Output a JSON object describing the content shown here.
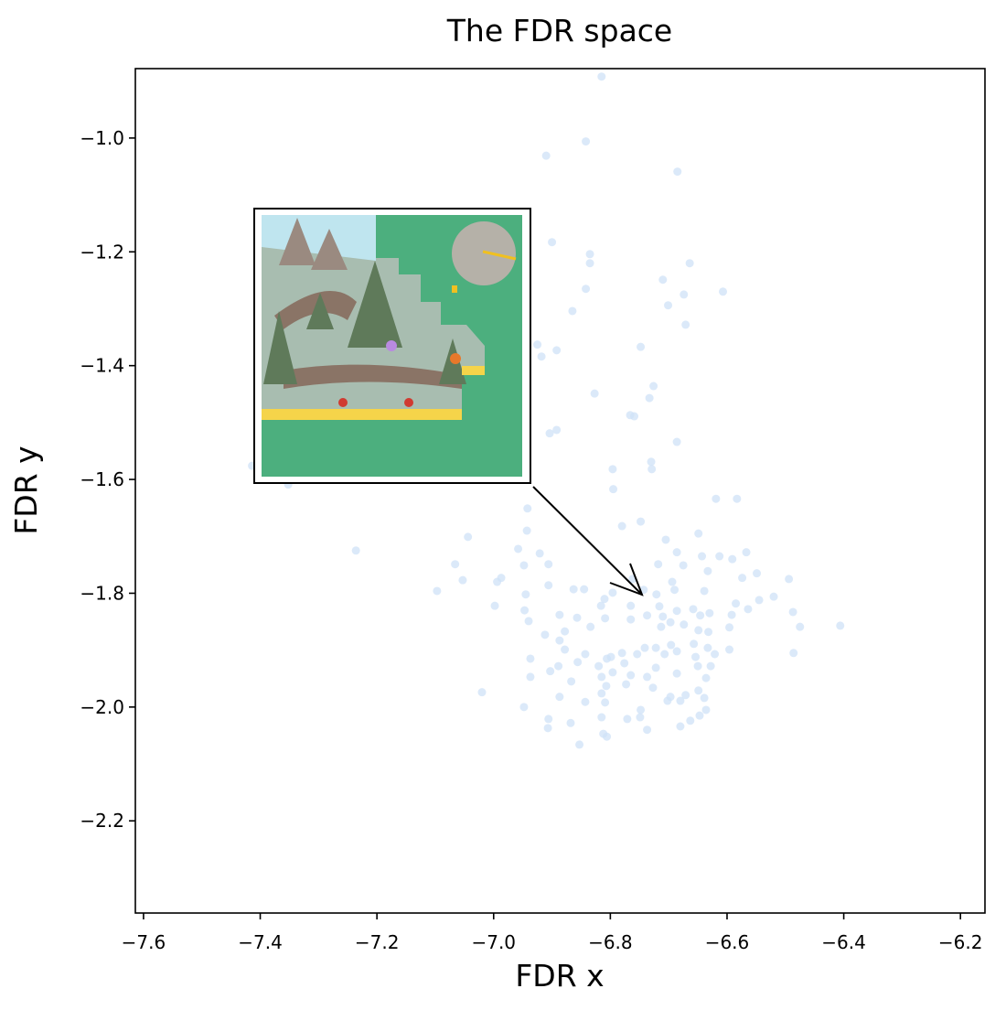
{
  "chart_data": {
    "type": "scatter",
    "title": "The FDR space",
    "x_label": "FDR x",
    "y_label": "FDR y",
    "color": "#cfe1f7",
    "xlim": [
      -7.614,
      -6.158
    ],
    "ylim": [
      -2.362,
      -0.878
    ],
    "xticks": [
      {
        "value": -7.6,
        "label": "−7.6"
      },
      {
        "value": -7.4,
        "label": "−7.4"
      },
      {
        "value": -7.2,
        "label": "−7.2"
      },
      {
        "value": -7.0,
        "label": "−7.0"
      },
      {
        "value": -6.8,
        "label": "−6.8"
      },
      {
        "value": -6.6,
        "label": "−6.6"
      },
      {
        "value": -6.4,
        "label": "−6.4"
      },
      {
        "value": -6.2,
        "label": "−6.2"
      }
    ],
    "yticks": [
      {
        "value": -1.0,
        "label": "−1.0"
      },
      {
        "value": -1.2,
        "label": "−1.2"
      },
      {
        "value": -1.4,
        "label": "−1.4"
      },
      {
        "value": -1.6,
        "label": "−1.6"
      },
      {
        "value": -1.8,
        "label": "−1.8"
      },
      {
        "value": -2.0,
        "label": "−2.0"
      },
      {
        "value": -2.2,
        "label": "−2.2"
      }
    ],
    "x": [
      -6.815,
      -6.842,
      -6.91,
      -6.685,
      -6.9,
      -6.835,
      -6.835,
      -6.664,
      -6.71,
      -6.607,
      -6.674,
      -6.701,
      -6.842,
      -6.865,
      -6.671,
      -6.925,
      -6.918,
      -6.892,
      -6.748,
      -6.726,
      -6.733,
      -6.827,
      -6.766,
      -6.759,
      -6.892,
      -6.904,
      -6.686,
      -6.73,
      -6.729,
      -6.796,
      -6.795,
      -7.414,
      -7.352,
      -6.942,
      -6.619,
      -6.583,
      -6.78,
      -6.748,
      -6.943,
      -7.044,
      -7.066,
      -7.053,
      -6.987,
      -6.958,
      -6.921,
      -6.906,
      -6.948,
      -6.705,
      -6.686,
      -6.649,
      -6.643,
      -6.718,
      -6.675,
      -6.694,
      -6.613,
      -6.591,
      -6.567,
      -6.633,
      -6.549,
      -6.574,
      -6.639,
      -6.69,
      -6.743,
      -6.762,
      -6.796,
      -6.81,
      -6.863,
      -6.845,
      -6.906,
      -6.945,
      -6.994,
      -7.097,
      -6.998,
      -6.947,
      -6.94,
      -6.887,
      -6.857,
      -6.816,
      -6.765,
      -6.721,
      -6.716,
      -6.686,
      -6.658,
      -6.71,
      -6.737,
      -6.585,
      -6.564,
      -6.545,
      -6.52,
      -6.494,
      -6.592,
      -6.63,
      -6.646,
      -6.674,
      -6.697,
      -6.713,
      -6.765,
      -6.809,
      -6.834,
      -6.878,
      -6.912,
      -6.887,
      -6.878,
      -6.843,
      -6.799,
      -6.776,
      -6.741,
      -6.722,
      -6.696,
      -6.657,
      -6.633,
      -6.596,
      -6.632,
      -6.649,
      -6.487,
      -6.475,
      -6.406,
      -6.486,
      -6.596,
      -6.621,
      -6.654,
      -6.686,
      -6.707,
      -6.754,
      -6.78,
      -6.806,
      -6.82,
      -6.856,
      -6.889,
      -6.903,
      -6.937,
      -6.937,
      -6.867,
      -6.815,
      -6.807,
      -6.796,
      -6.765,
      -6.737,
      -6.722,
      -6.686,
      -6.65,
      -6.628,
      -6.636,
      -6.649,
      -6.671,
      -6.697,
      -6.727,
      -6.773,
      -6.815,
      -6.809,
      -6.843,
      -6.887,
      -7.02,
      -6.948,
      -6.906,
      -6.907,
      -6.868,
      -6.815,
      -6.812,
      -6.806,
      -6.853,
      -6.748,
      -6.749,
      -6.771,
      -6.737,
      -6.702,
      -6.68,
      -6.639,
      -6.636,
      -6.647,
      -6.663,
      -6.68,
      -7.236
    ],
    "values": [
      -0.892,
      -1.006,
      -1.031,
      -1.059,
      -1.183,
      -1.204,
      -1.22,
      -1.22,
      -1.249,
      -1.27,
      -1.275,
      -1.294,
      -1.265,
      -1.304,
      -1.328,
      -1.363,
      -1.384,
      -1.373,
      -1.367,
      -1.436,
      -1.457,
      -1.449,
      -1.487,
      -1.489,
      -1.513,
      -1.519,
      -1.534,
      -1.569,
      -1.582,
      -1.582,
      -1.617,
      -1.576,
      -1.609,
      -1.651,
      -1.634,
      -1.634,
      -1.682,
      -1.674,
      -1.69,
      -1.701,
      -1.749,
      -1.777,
      -1.773,
      -1.722,
      -1.73,
      -1.749,
      -1.751,
      -1.706,
      -1.728,
      -1.695,
      -1.735,
      -1.749,
      -1.751,
      -1.78,
      -1.735,
      -1.74,
      -1.728,
      -1.761,
      -1.765,
      -1.773,
      -1.796,
      -1.794,
      -1.794,
      -1.775,
      -1.799,
      -1.81,
      -1.793,
      -1.793,
      -1.786,
      -1.802,
      -1.78,
      -1.796,
      -1.822,
      -1.83,
      -1.849,
      -1.838,
      -1.843,
      -1.822,
      -1.822,
      -1.802,
      -1.823,
      -1.831,
      -1.828,
      -1.841,
      -1.839,
      -1.818,
      -1.828,
      -1.812,
      -1.806,
      -1.775,
      -1.838,
      -1.835,
      -1.839,
      -1.855,
      -1.851,
      -1.859,
      -1.846,
      -1.844,
      -1.859,
      -1.867,
      -1.873,
      -1.883,
      -1.899,
      -1.907,
      -1.912,
      -1.923,
      -1.896,
      -1.896,
      -1.891,
      -1.889,
      -1.896,
      -1.86,
      -1.868,
      -1.865,
      -1.833,
      -1.859,
      -1.857,
      -1.905,
      -1.899,
      -1.907,
      -1.912,
      -1.902,
      -1.907,
      -1.907,
      -1.905,
      -1.915,
      -1.928,
      -1.921,
      -1.928,
      -1.937,
      -1.915,
      -1.947,
      -1.955,
      -1.947,
      -1.963,
      -1.939,
      -1.944,
      -1.947,
      -1.931,
      -1.941,
      -1.928,
      -1.928,
      -1.949,
      -1.971,
      -1.979,
      -1.982,
      -1.966,
      -1.96,
      -1.976,
      -1.992,
      -1.991,
      -1.982,
      -1.974,
      -2.0,
      -2.021,
      -2.037,
      -2.028,
      -2.018,
      -2.047,
      -2.052,
      -2.066,
      -2.005,
      -2.018,
      -2.021,
      -2.04,
      -1.989,
      -1.989,
      -1.984,
      -2.005,
      -2.015,
      -2.024,
      -2.034,
      -1.725
    ]
  }
}
